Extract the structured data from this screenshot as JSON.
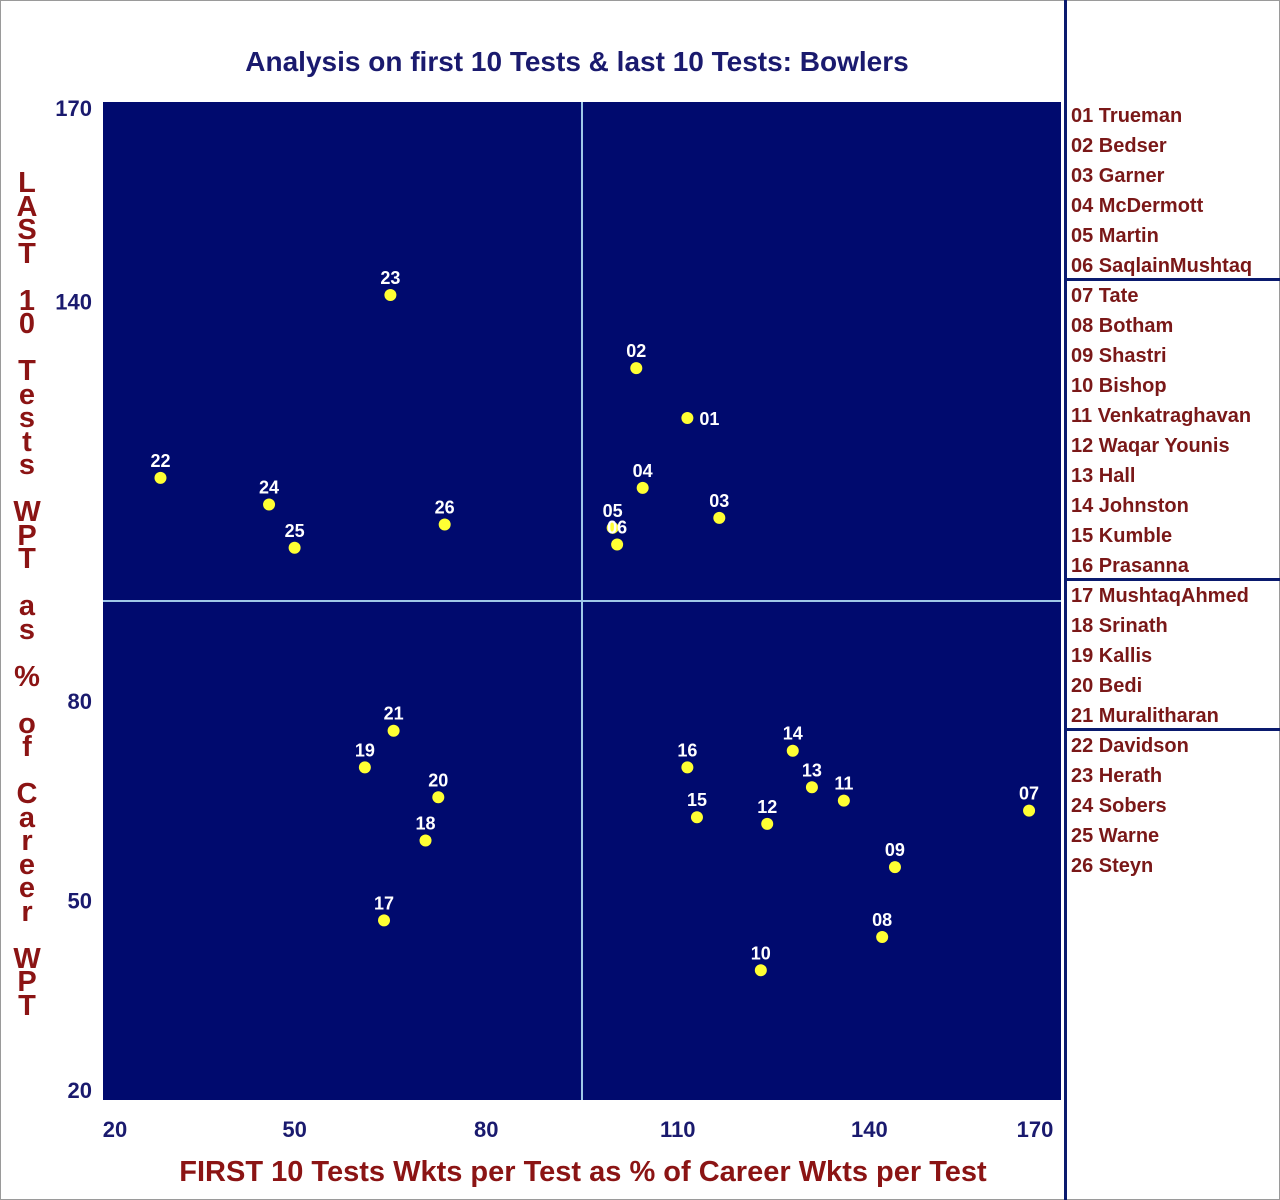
{
  "chart_data": {
    "type": "scatter",
    "title": "Analysis on first 10 Tests & last 10 Tests: Bowlers",
    "xlabel": "FIRST 10 Tests Wkts per Test as % of Career Wkts per Test",
    "ylabel": "LAST 10 Tests WPT as % of Career WPT",
    "xlim": [
      20,
      170
    ],
    "ylim": [
      20,
      170
    ],
    "x_ticks": [
      "20",
      "50",
      "80",
      "110",
      "140",
      "170"
    ],
    "y_ticks": [
      "20",
      "50",
      "80",
      "140",
      "170"
    ],
    "y_tick_values": [
      20,
      50,
      80,
      140,
      170
    ],
    "quadrant_lines": {
      "x": 95,
      "y": 95
    },
    "grid": false,
    "legend_position": "right",
    "colors": {
      "plot_bg": "#000a6e",
      "point": "#ffff33",
      "point_label": "#ffffff",
      "divider": "#9fc8e8",
      "title": "#1a1a6e",
      "tick": "#1a1a6e",
      "axis_label": "#8b1414",
      "legend_text": "#7a1818",
      "legend_rule": "#0a1a6e"
    },
    "points": [
      {
        "id": "01",
        "x": 111.5,
        "y": 122.5
      },
      {
        "id": "02",
        "x": 103.5,
        "y": 130
      },
      {
        "id": "03",
        "x": 116.5,
        "y": 107.5
      },
      {
        "id": "04",
        "x": 104.5,
        "y": 112
      },
      {
        "id": "05",
        "x": 99.8,
        "y": 106
      },
      {
        "id": "06",
        "x": 100.5,
        "y": 103.5
      },
      {
        "id": "07",
        "x": 165,
        "y": 63.5
      },
      {
        "id": "08",
        "x": 142,
        "y": 44.5
      },
      {
        "id": "09",
        "x": 144,
        "y": 55
      },
      {
        "id": "10",
        "x": 123,
        "y": 39.5
      },
      {
        "id": "11",
        "x": 136,
        "y": 65
      },
      {
        "id": "12",
        "x": 124,
        "y": 61.5
      },
      {
        "id": "13",
        "x": 131,
        "y": 67
      },
      {
        "id": "14",
        "x": 128,
        "y": 72.5
      },
      {
        "id": "15",
        "x": 113,
        "y": 62.5
      },
      {
        "id": "16",
        "x": 111.5,
        "y": 70
      },
      {
        "id": "17",
        "x": 64,
        "y": 47
      },
      {
        "id": "18",
        "x": 70.5,
        "y": 59
      },
      {
        "id": "19",
        "x": 61,
        "y": 70
      },
      {
        "id": "20",
        "x": 72.5,
        "y": 65.5
      },
      {
        "id": "21",
        "x": 65.5,
        "y": 75.5
      },
      {
        "id": "22",
        "x": 29,
        "y": 113.5
      },
      {
        "id": "23",
        "x": 65,
        "y": 141
      },
      {
        "id": "24",
        "x": 46,
        "y": 109.5
      },
      {
        "id": "25",
        "x": 50,
        "y": 103
      },
      {
        "id": "26",
        "x": 73.5,
        "y": 106.5
      }
    ],
    "legend": [
      "01 Trueman",
      "02 Bedser",
      "03 Garner",
      "04 McDermott",
      "05 Martin",
      "06 SaqlainMushtaq",
      "07 Tate",
      "08 Botham",
      "09 Shastri",
      "10 Bishop",
      "11 Venkatraghavan",
      "12 Waqar Younis",
      "13 Hall",
      "14 Johnston",
      "15 Kumble",
      "16 Prasanna",
      "17 MushtaqAhmed",
      "18 Srinath",
      "19 Kallis",
      "20 Bedi",
      "21 Muralitharan",
      "22 Davidson",
      "23 Herath",
      "24 Sobers",
      "25 Warne",
      "26 Steyn"
    ],
    "legend_group_ends": [
      5,
      15,
      20
    ]
  }
}
